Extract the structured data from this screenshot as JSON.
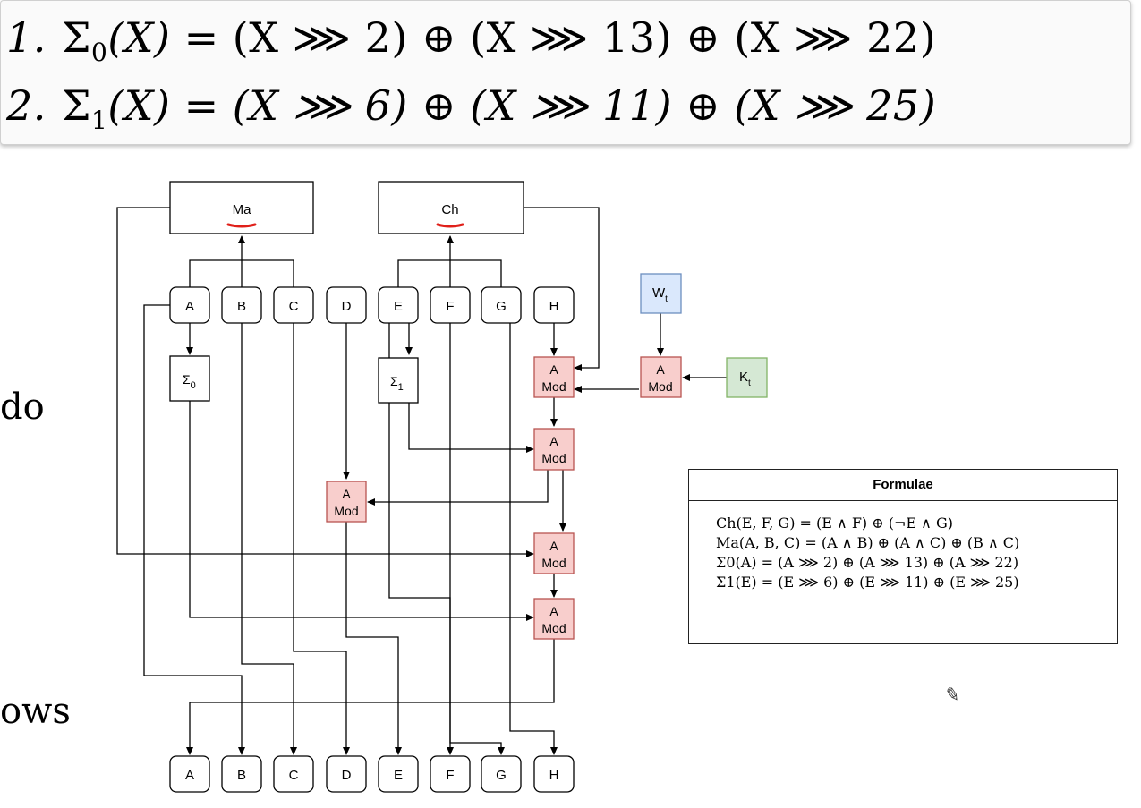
{
  "equations": [
    {
      "num": "1.",
      "sigma": "Σ",
      "sub": "0",
      "arg": "(X)",
      "eq": " = ",
      "rhs": "(X ⋙ 2) ⊕ (X ⋙ 13) ⊕ (X ⋙ 22)"
    },
    {
      "num": "2.",
      "sigma": "Σ",
      "sub": "1",
      "arg": "(X)",
      "eq": " = ",
      "rhs": "(X ⋙ 6) ⊕ (X ⋙ 11) ⊕ (X ⋙ 25)"
    }
  ],
  "side_text": {
    "left_mid": "do",
    "left_low": "ows"
  },
  "diagram": {
    "ma_label": "Ma",
    "ch_label": "Ch",
    "top_registers": [
      "A",
      "B",
      "C",
      "D",
      "E",
      "F",
      "G",
      "H"
    ],
    "bottom_registers": [
      "A",
      "B",
      "C",
      "D",
      "E",
      "F",
      "G",
      "H"
    ],
    "sigma0_main": "Σ",
    "sigma0_sub": "0",
    "sigma1_main": "Σ",
    "sigma1_sub": "1",
    "wt_main": "W",
    "wt_sub": "t",
    "kt_main": "K",
    "kt_sub": "t",
    "amod_top": "A",
    "amod_bottom": "Mod",
    "colors": {
      "amod_fill": "#f8cecc",
      "amod_stroke": "#b85450",
      "wt_fill": "#dae8fc",
      "wt_stroke": "#6c8ebf",
      "kt_fill": "#d5e8d4",
      "kt_stroke": "#82b366",
      "underline": "#e0201a"
    }
  },
  "formulae": {
    "title": "Formulae",
    "lines": [
      "Ch(E, F, G) = (E ∧ F) ⊕ (¬E ∧ G)",
      "Ma(A, B, C) = (A ∧ B) ⊕ (A ∧ C) ⊕ (B ∧ C)",
      "Σ0(A) = (A ⋙ 2) ⊕ (A ⋙ 13) ⊕ (A ⋙ 22)",
      "Σ1(E) = (E ⋙ 6) ⊕ (E ⋙ 11) ⊕ (E ⋙ 25)"
    ]
  },
  "icons": {
    "pencil": "pencil-icon"
  }
}
